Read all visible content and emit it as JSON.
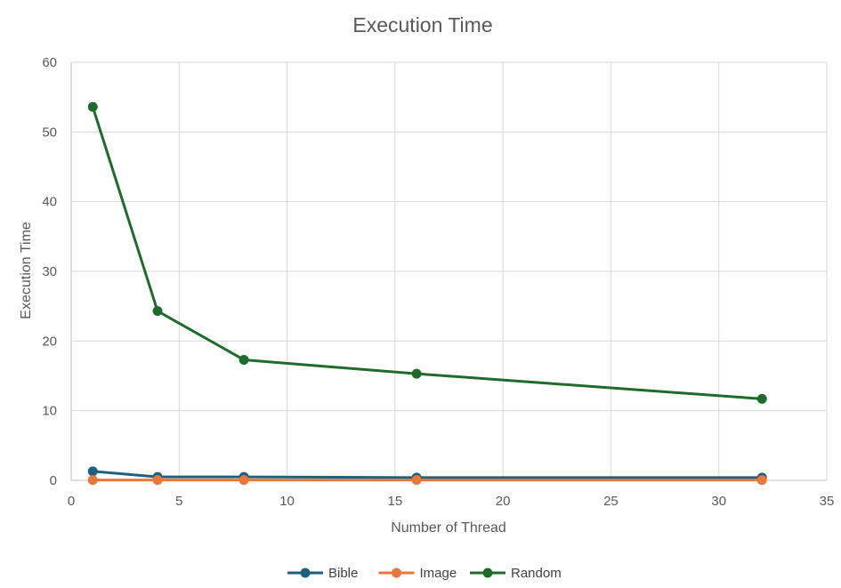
{
  "chart_data": {
    "type": "scatter",
    "title": "Execution Time",
    "xlabel": "Number of Thread",
    "ylabel": "Execution Time",
    "xlim": [
      0,
      35
    ],
    "ylim": [
      0,
      60
    ],
    "xticks": [
      0,
      5,
      10,
      15,
      20,
      25,
      30,
      35
    ],
    "yticks": [
      0,
      10,
      20,
      30,
      40,
      50,
      60
    ],
    "grid": true,
    "legend_position": "bottom",
    "x": [
      1,
      4,
      8,
      16,
      32
    ],
    "series": [
      {
        "name": "Bible",
        "color": "#1f5f7f",
        "values": [
          1.3,
          0.5,
          0.5,
          0.4,
          0.4
        ]
      },
      {
        "name": "Image",
        "color": "#e8773a",
        "values": [
          0.05,
          0.05,
          0.05,
          0.05,
          0.05
        ]
      },
      {
        "name": "Random",
        "color": "#1e6b2b",
        "values": [
          53.6,
          24.3,
          17.3,
          15.3,
          11.7
        ]
      }
    ]
  }
}
